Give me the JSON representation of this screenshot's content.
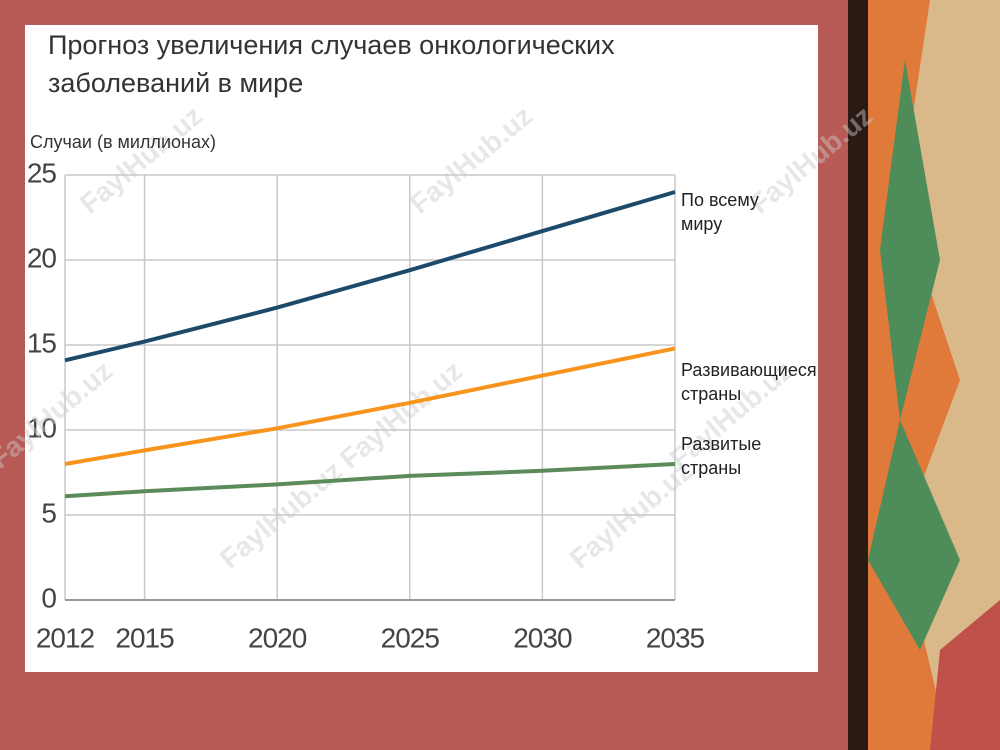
{
  "chart_data": {
    "type": "line",
    "title": "Прогноз увеличения случаев онкологических заболеваний в мире",
    "y_label": "Случаи (в миллионах)",
    "watermark": "FaylHub.uz",
    "x": [
      2012,
      2015,
      2020,
      2025,
      2030,
      2035
    ],
    "xlim": [
      2012,
      2035
    ],
    "xticks": [
      2012,
      2015,
      2020,
      2025,
      2030,
      2035
    ],
    "ylim": [
      0,
      25
    ],
    "yticks": [
      0,
      5,
      10,
      15,
      20,
      25
    ],
    "grid": true,
    "series": [
      {
        "name": "По всему миру",
        "color": "#1d4a6b",
        "values": [
          14.1,
          15.2,
          17.2,
          19.4,
          21.7,
          24.0
        ]
      },
      {
        "name": "Развивающиеся страны",
        "color": "#f7941d",
        "values": [
          8.0,
          8.8,
          10.1,
          11.6,
          13.2,
          14.8
        ]
      },
      {
        "name": "Развитые страны",
        "color": "#5b8a5b",
        "values": [
          6.1,
          6.4,
          6.8,
          7.3,
          7.6,
          8.0
        ]
      }
    ]
  }
}
